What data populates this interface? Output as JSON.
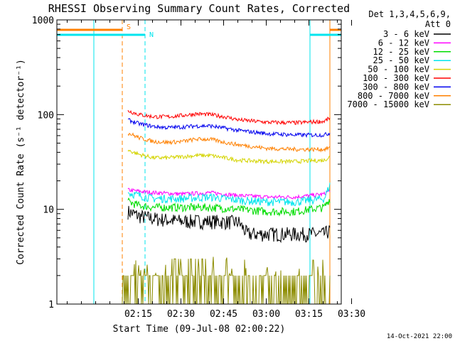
{
  "chart_data": {
    "type": "line",
    "title": "RHESSI Observing Summary Count Rates, Corrected",
    "xlabel": "Start Time (09-Jul-08 02:00:22)",
    "ylabel": "Corrected Count Rate (s⁻¹ detector⁻¹)",
    "x_unit": "minutes after 02:00:22",
    "xlim": [
      -14,
      86
    ],
    "ylim": [
      1,
      1000
    ],
    "y_scale": "log",
    "x_tick_labels": [
      "02:15",
      "02:30",
      "02:45",
      "03:00",
      "03:15",
      "03:30"
    ],
    "y_tick_labels": [
      "1",
      "10",
      "100",
      "1000"
    ],
    "legend_title": [
      "Det 1,3,4,5,6,9,",
      "Att 0"
    ],
    "legend_position": "right",
    "footer_date": "14-Oct-2021 22:00",
    "flags": [
      {
        "label": "S",
        "color": "#ff8000",
        "intervals": [
          [
            -14,
            9
          ],
          [
            82,
            86
          ]
        ]
      },
      {
        "label": "N",
        "color": "#00e5ee",
        "intervals": [
          [
            -14,
            17
          ],
          [
            75,
            86
          ]
        ]
      }
    ],
    "vertical_markers": [
      {
        "x": -1,
        "color": "#00e5ee",
        "style": "solid"
      },
      {
        "x": 9,
        "color": "#ff8000",
        "style": "dashed"
      },
      {
        "x": 17,
        "color": "#00e5ee",
        "style": "dashed"
      },
      {
        "x": 75,
        "color": "#00e5ee",
        "style": "solid"
      },
      {
        "x": 82,
        "color": "#ff8000",
        "style": "solid"
      },
      {
        "x": 86,
        "color": "#ff8000",
        "style": "dashed"
      }
    ],
    "series": [
      {
        "name": "3 - 6 keV",
        "color": "#000000",
        "x": [
          11,
          15,
          20,
          30,
          40,
          50,
          53,
          60,
          70,
          80,
          82
        ],
        "y": [
          9.5,
          8.5,
          8,
          7.5,
          7.5,
          7.3,
          5.5,
          5.5,
          5.5,
          5.5,
          6
        ]
      },
      {
        "name": "6 - 12 keV",
        "color": "#ff00ff",
        "x": [
          11,
          15,
          20,
          30,
          40,
          50,
          60,
          70,
          80,
          82
        ],
        "y": [
          16,
          15.5,
          15,
          14.5,
          15,
          14,
          13.5,
          13.5,
          14.5,
          16
        ]
      },
      {
        "name": "12 - 25 keV",
        "color": "#00dd00",
        "x": [
          11,
          15,
          20,
          30,
          40,
          50,
          60,
          70,
          80,
          82
        ],
        "y": [
          12,
          11,
          10.5,
          10.5,
          10.5,
          10,
          9.5,
          9.5,
          10.5,
          13
        ]
      },
      {
        "name": "25 - 50 keV",
        "color": "#00e5ee",
        "x": [
          11,
          15,
          20,
          30,
          40,
          50,
          60,
          70,
          80,
          82
        ],
        "y": [
          15,
          14,
          13,
          13,
          13.5,
          12.5,
          12,
          12,
          13,
          18
        ]
      },
      {
        "name": "50 - 100 keV",
        "color": "#d4d400",
        "x": [
          11,
          15,
          20,
          25,
          30,
          35,
          40,
          45,
          50,
          60,
          70,
          80,
          82
        ],
        "y": [
          42,
          38,
          35,
          35,
          36,
          37,
          37,
          35,
          33,
          32,
          32,
          33,
          36
        ]
      },
      {
        "name": "100 - 300 keV",
        "color": "#ff0000",
        "x": [
          11,
          15,
          20,
          25,
          30,
          35,
          40,
          45,
          50,
          60,
          70,
          80,
          82
        ],
        "y": [
          110,
          100,
          95,
          95,
          98,
          102,
          100,
          95,
          88,
          83,
          82,
          85,
          92
        ]
      },
      {
        "name": "300 - 800 keV",
        "color": "#0000ee",
        "x": [
          11,
          15,
          20,
          25,
          30,
          35,
          40,
          45,
          50,
          60,
          70,
          80,
          82
        ],
        "y": [
          88,
          80,
          75,
          73,
          74,
          76,
          76,
          72,
          68,
          63,
          61,
          61,
          64
        ]
      },
      {
        "name": "800 - 7000 keV",
        "color": "#ff8000",
        "x": [
          11,
          15,
          20,
          25,
          30,
          35,
          40,
          45,
          50,
          60,
          70,
          80,
          82
        ],
        "y": [
          64,
          57,
          52,
          51,
          52,
          55,
          55,
          51,
          48,
          44,
          43,
          43,
          45
        ]
      },
      {
        "name": "7000 - 15000 keV",
        "color": "#8c8c00",
        "x": [
          9,
          15,
          20,
          25,
          30,
          35,
          40,
          50,
          60,
          70,
          75,
          80,
          82
        ],
        "y": [
          1.5,
          1.5,
          1.7,
          1.8,
          1.8,
          2.1,
          2.2,
          1.7,
          1.6,
          1.5,
          1.6,
          1.6,
          1.5
        ]
      }
    ]
  }
}
